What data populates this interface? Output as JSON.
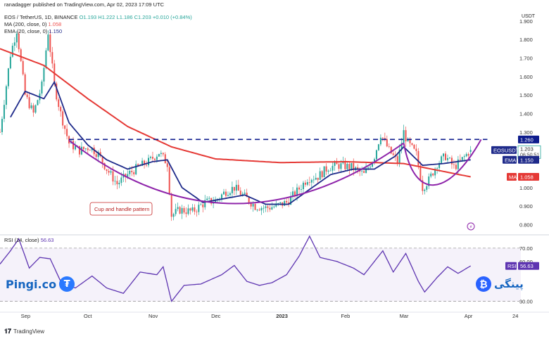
{
  "header": {
    "publisher": "ranadagger published on TradingView.com, Apr 02, 2023 17:09 UTC",
    "symbol": "EOS / TetherUS, 1D, BINANCE",
    "o": "O1.193",
    "h": "H1.222",
    "l": "L1.186",
    "c": "C1.203",
    "change": "+0.010 (+0.84%)",
    "ma_label": "MA (200, close, 0)",
    "ma_value": "1.058",
    "ema_label": "EMA (20, close, 0)",
    "ema_value": "1.150",
    "rsi_label": "RSI (14, close)",
    "rsi_value": "56.63",
    "currency": "USDT"
  },
  "annotation": "Cup and handle pattern",
  "brand_left": "Pingi.co",
  "brand_right": "پینگی",
  "footer": "TradingView",
  "colors": {
    "up": "#26a69a",
    "down": "#ef5350",
    "ema": "#1e2a8a",
    "ma": "#e53935",
    "cup": "#8e24aa",
    "rsi": "#5e35b1",
    "resistance": "#0d1b8c"
  },
  "chart_data": [
    {
      "type": "candlestick",
      "title": "EOS / TetherUS, 1D, BINANCE",
      "x": [
        "Sep",
        "Oct",
        "Nov",
        "Dec",
        "2023",
        "Feb",
        "Mar",
        "Apr",
        "24"
      ],
      "y_ticks": [
        1.9,
        1.8,
        1.7,
        1.6,
        1.5,
        1.4,
        1.3,
        1.0,
        0.9,
        0.8
      ],
      "ylim": [
        0.76,
        1.96
      ],
      "close_path": [
        [
          "Aug 20",
          1.3
        ],
        [
          "Aug 25",
          1.72
        ],
        [
          "Aug 28",
          1.85
        ],
        [
          "Sep 1",
          1.5
        ],
        [
          "Sep 5",
          1.4
        ],
        [
          "Sep 9",
          1.55
        ],
        [
          "Sep 12",
          1.84
        ],
        [
          "Sep 15",
          1.55
        ],
        [
          "Sep 18",
          1.4
        ],
        [
          "Sep 22",
          1.24
        ],
        [
          "Sep 27",
          1.2
        ],
        [
          "Oct 2",
          1.22
        ],
        [
          "Oct 6",
          1.18
        ],
        [
          "Oct 10",
          1.1
        ],
        [
          "Oct 15",
          1.02
        ],
        [
          "Oct 20",
          1.07
        ],
        [
          "Oct 25",
          1.11
        ],
        [
          "Oct 30",
          1.14
        ],
        [
          "Nov 4",
          1.19
        ],
        [
          "Nov 8",
          1.13
        ],
        [
          "Nov 10",
          0.85
        ],
        [
          "Nov 14",
          0.88
        ],
        [
          "Nov 20",
          0.87
        ],
        [
          "Nov 26",
          0.92
        ],
        [
          "Dec 1",
          0.93
        ],
        [
          "Dec 6",
          0.98
        ],
        [
          "Dec 10",
          1.0
        ],
        [
          "Dec 15",
          0.95
        ],
        [
          "Dec 20",
          0.9
        ],
        [
          "Dec 25",
          0.89
        ],
        [
          "Dec 30",
          0.9
        ],
        [
          "Jan 4",
          0.92
        ],
        [
          "Jan 9",
          0.98
        ],
        [
          "Jan 14",
          1.05
        ],
        [
          "Jan 19",
          1.06
        ],
        [
          "Jan 24",
          1.11
        ],
        [
          "Jan 29",
          1.12
        ],
        [
          "Feb 4",
          1.11
        ],
        [
          "Feb 10",
          1.07
        ],
        [
          "Feb 15",
          1.17
        ],
        [
          "Feb 18",
          1.29
        ],
        [
          "Feb 22",
          1.2
        ],
        [
          "Feb 26",
          1.14
        ],
        [
          "Mar 1",
          1.3
        ],
        [
          "Mar 3",
          1.24
        ],
        [
          "Mar 7",
          1.18
        ],
        [
          "Mar 10",
          1.0
        ],
        [
          "Mar 13",
          1.04
        ],
        [
          "Mar 17",
          1.13
        ],
        [
          "Mar 21",
          1.17
        ],
        [
          "Mar 25",
          1.11
        ],
        [
          "Mar 28",
          1.14
        ],
        [
          "Apr 2",
          1.203
        ]
      ],
      "ema20_path": [
        [
          "Aug 25",
          1.38
        ],
        [
          "Sep 1",
          1.52
        ],
        [
          "Sep 10",
          1.48
        ],
        [
          "Sep 15",
          1.57
        ],
        [
          "Sep 22",
          1.35
        ],
        [
          "Oct 1",
          1.23
        ],
        [
          "Oct 10",
          1.15
        ],
        [
          "Oct 20",
          1.1
        ],
        [
          "Nov 1",
          1.14
        ],
        [
          "Nov 8",
          1.15
        ],
        [
          "Nov 15",
          1.0
        ],
        [
          "Nov 25",
          0.92
        ],
        [
          "Dec 5",
          0.94
        ],
        [
          "Dec 15",
          0.96
        ],
        [
          "Dec 25",
          0.91
        ],
        [
          "Jan 5",
          0.91
        ],
        [
          "Jan 15",
          0.99
        ],
        [
          "Jan 25",
          1.07
        ],
        [
          "Feb 5",
          1.1
        ],
        [
          "Feb 15",
          1.1
        ],
        [
          "Feb 25",
          1.17
        ],
        [
          "Mar 1",
          1.22
        ],
        [
          "Mar 10",
          1.12
        ],
        [
          "Mar 20",
          1.13
        ],
        [
          "Apr 2",
          1.15
        ]
      ],
      "ma200_path": [
        [
          "Aug 20",
          1.75
        ],
        [
          "Sep 10",
          1.66
        ],
        [
          "Oct 1",
          1.48
        ],
        [
          "Oct 20",
          1.33
        ],
        [
          "Nov 10",
          1.22
        ],
        [
          "Dec 1",
          1.155
        ],
        [
          "Jan 1",
          1.135
        ],
        [
          "Feb 1",
          1.14
        ],
        [
          "Mar 1",
          1.13
        ],
        [
          "Apr 2",
          1.058
        ]
      ],
      "resistance": 1.26,
      "last_price": 1.203,
      "countdown": "06:50:51",
      "ticker": "EOSUSDT",
      "ema_value": 1.15,
      "ma_value": 1.058
    },
    {
      "type": "line",
      "title": "RSI (14, close)",
      "y_ticks": [
        70.0,
        60.0,
        30.0
      ],
      "ylim": [
        25,
        80
      ],
      "guides": [
        70,
        30
      ],
      "last_value": 56.63,
      "rsi_path": [
        [
          "Aug 20",
          58
        ],
        [
          "Aug 25",
          68
        ],
        [
          "Aug 29",
          77
        ],
        [
          "Sep 3",
          55
        ],
        [
          "Sep 8",
          63
        ],
        [
          "Sep 13",
          62
        ],
        [
          "Sep 18",
          45
        ],
        [
          "Sep 25",
          40
        ],
        [
          "Oct 3",
          49
        ],
        [
          "Oct 10",
          40
        ],
        [
          "Oct 18",
          36
        ],
        [
          "Oct 26",
          52
        ],
        [
          "Nov 3",
          50
        ],
        [
          "Nov 6",
          56
        ],
        [
          "Nov 10",
          30
        ],
        [
          "Nov 16",
          42
        ],
        [
          "Nov 24",
          43
        ],
        [
          "Dec 4",
          50
        ],
        [
          "Dec 10",
          57
        ],
        [
          "Dec 16",
          45
        ],
        [
          "Dec 22",
          42
        ],
        [
          "Dec 28",
          44
        ],
        [
          "Jan 4",
          50
        ],
        [
          "Jan 10",
          64
        ],
        [
          "Jan 15",
          79
        ],
        [
          "Jan 20",
          63
        ],
        [
          "Jan 28",
          60
        ],
        [
          "Feb 5",
          55
        ],
        [
          "Feb 10",
          50
        ],
        [
          "Feb 19",
          68
        ],
        [
          "Feb 24",
          52
        ],
        [
          "Mar 2",
          66
        ],
        [
          "Mar 8",
          45
        ],
        [
          "Mar 11",
          37
        ],
        [
          "Mar 17",
          48
        ],
        [
          "Mar 22",
          56
        ],
        [
          "Mar 27",
          51
        ],
        [
          "Apr 2",
          56.63
        ]
      ]
    }
  ]
}
